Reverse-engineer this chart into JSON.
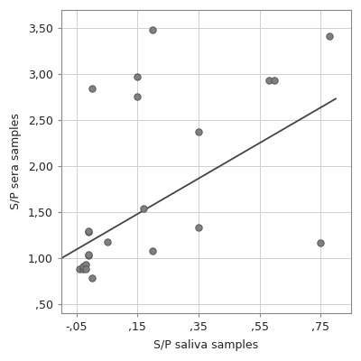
{
  "x_points": [
    -0.04,
    -0.03,
    -0.03,
    -0.02,
    -0.02,
    -0.01,
    -0.01,
    -0.01,
    -0.01,
    0.0,
    0.0,
    0.05,
    0.15,
    0.15,
    0.17,
    0.2,
    0.2,
    0.35,
    0.35,
    0.58,
    0.6,
    0.75,
    0.78
  ],
  "y_points": [
    0.88,
    0.88,
    0.91,
    0.93,
    0.88,
    1.03,
    1.04,
    1.28,
    1.29,
    0.78,
    2.85,
    1.18,
    2.76,
    2.97,
    1.54,
    1.08,
    3.48,
    1.33,
    2.37,
    2.93,
    2.93,
    1.17,
    3.42
  ],
  "line_x_start": -0.1,
  "line_x_end": 0.8,
  "line_y_intercept": 1.19,
  "line_slope": 1.93,
  "xlabel": "S/P saliva samples",
  "ylabel": "S/P sera samples",
  "xlim": [
    -0.1,
    0.85
  ],
  "ylim": [
    0.4,
    3.7
  ],
  "xticks": [
    -0.05,
    0.15,
    0.35,
    0.55,
    0.75
  ],
  "yticks": [
    0.5,
    1.0,
    1.5,
    2.0,
    2.5,
    3.0,
    3.5
  ],
  "point_color": "#808080",
  "point_edge_color": "#555555",
  "line_color": "#444444",
  "bg_color": "#ffffff",
  "grid_color": "#d0d0d0",
  "spine_color": "#888888",
  "font_color": "#222222",
  "point_size": 28,
  "line_width": 1.3,
  "label_fontsize": 9,
  "axis_label_fontsize": 9
}
